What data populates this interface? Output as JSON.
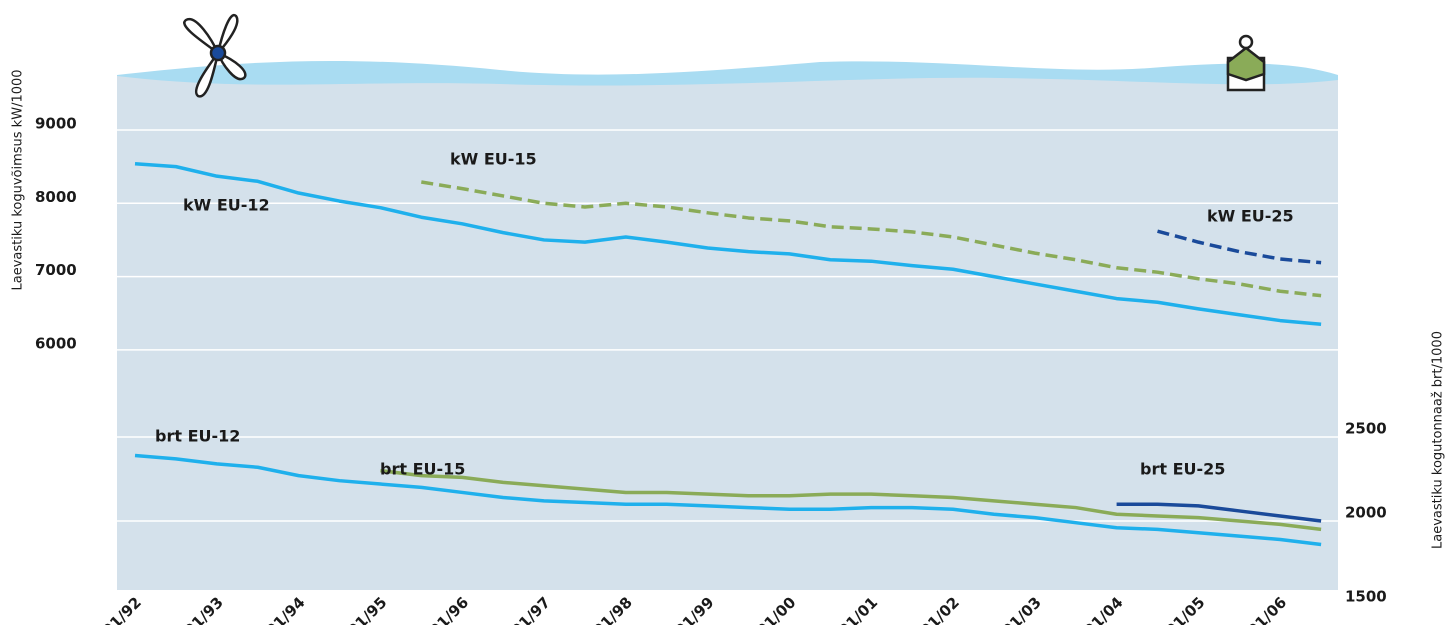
{
  "chart_data": {
    "type": "line",
    "y_label": "Laevastiku koguvõimsus kW/1000",
    "y2_label": "Laevastiku kogutonnaaž brt/1000",
    "categories": [
      "01/92",
      null,
      "01/93",
      null,
      "01/94",
      null,
      "01/95",
      null,
      "01/96",
      null,
      "01/97",
      null,
      "01/98",
      null,
      "01/99",
      null,
      "01/00",
      null,
      "01/01",
      null,
      "01/02",
      null,
      "01/03",
      null,
      "01/04",
      null,
      "01/05",
      null,
      "01/06",
      null
    ],
    "ylim": [
      2520,
      9750
    ],
    "yticks": [
      6000,
      7000,
      8000,
      9000
    ],
    "y2lim": [
      1500,
      4655
    ],
    "y2ticks": [
      1500,
      2000,
      2500
    ],
    "grid": true,
    "series": [
      {
        "name": "kW EU-12",
        "color": "#1fb0ec",
        "style": "solid",
        "values": [
          8540,
          8500,
          8370,
          8300,
          8140,
          8030,
          7940,
          7810,
          7720,
          7600,
          7500,
          7470,
          7540,
          7470,
          7390,
          7340,
          7310,
          7230,
          7210,
          7150,
          7100,
          7000,
          6900,
          6800,
          6700,
          6650,
          6560,
          6480,
          6400,
          6350
        ]
      },
      {
        "name": "kW EU-15",
        "color": "#8aab58",
        "style": "dashed",
        "values": [
          null,
          null,
          null,
          null,
          null,
          null,
          null,
          8290,
          8200,
          8100,
          8000,
          7950,
          8000,
          7950,
          7870,
          7800,
          7760,
          7680,
          7650,
          7610,
          7540,
          7430,
          7320,
          7230,
          7120,
          7060,
          6970,
          6900,
          6800,
          6740
        ]
      },
      {
        "name": "kW EU-25",
        "color": "#1a4a9a",
        "style": "dashed",
        "values": [
          null,
          null,
          null,
          null,
          null,
          null,
          null,
          null,
          null,
          null,
          null,
          null,
          null,
          null,
          null,
          null,
          null,
          null,
          null,
          null,
          null,
          null,
          null,
          null,
          null,
          7620,
          7470,
          7340,
          7240,
          7190
        ]
      },
      {
        "name": "brt EU-12",
        "color": "#1fb0ec",
        "style": "solid",
        "axis": "y2",
        "values": [
          2390,
          2370,
          2340,
          2320,
          2270,
          2240,
          2220,
          2200,
          2170,
          2140,
          2120,
          2110,
          2100,
          2100,
          2090,
          2080,
          2070,
          2070,
          2080,
          2080,
          2070,
          2040,
          2020,
          1990,
          1960,
          1950,
          1930,
          1910,
          1890,
          1860
        ]
      },
      {
        "name": "brt EU-15",
        "color": "#8aab58",
        "style": "solid",
        "axis": "y2",
        "values": [
          null,
          null,
          null,
          null,
          null,
          null,
          2300,
          2270,
          2260,
          2230,
          2210,
          2190,
          2170,
          2170,
          2160,
          2150,
          2150,
          2160,
          2160,
          2150,
          2140,
          2120,
          2100,
          2080,
          2040,
          2030,
          2020,
          2000,
          1980,
          1950
        ]
      },
      {
        "name": "brt EU-25",
        "color": "#1a4a9a",
        "style": "solid",
        "axis": "y2",
        "values": [
          null,
          null,
          null,
          null,
          null,
          null,
          null,
          null,
          null,
          null,
          null,
          null,
          null,
          null,
          null,
          null,
          null,
          null,
          null,
          null,
          null,
          null,
          null,
          null,
          2100,
          2100,
          2090,
          2060,
          2030,
          2000
        ]
      }
    ]
  }
}
